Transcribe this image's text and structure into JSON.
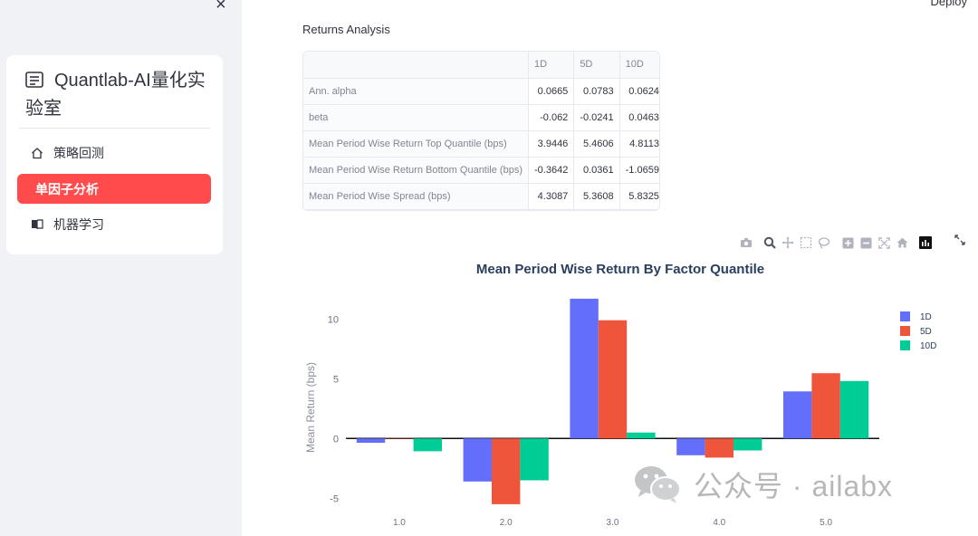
{
  "sidebar": {
    "close_label": "×",
    "title": "Quantlab-AI量化实验室",
    "items": [
      {
        "label": "策略回测",
        "icon": "home-outline-icon",
        "active": false
      },
      {
        "label": "单因子分析",
        "icon": "",
        "active": true
      },
      {
        "label": "机器学习",
        "icon": "book-icon",
        "active": false
      }
    ],
    "accent_color": "#ff4b4b"
  },
  "header": {
    "deploy_label": "Deploy"
  },
  "main": {
    "section_title": "Returns Analysis",
    "table": {
      "columns": [
        "",
        "1D",
        "5D",
        "10D"
      ],
      "rows": [
        {
          "label": "Ann. alpha",
          "values": [
            "0.0665",
            "0.0783",
            "0.0624"
          ]
        },
        {
          "label": "beta",
          "values": [
            "-0.062",
            "-0.0241",
            "0.0463"
          ]
        },
        {
          "label": "Mean Period Wise Return Top Quantile (bps)",
          "values": [
            "3.9446",
            "5.4606",
            "4.8113"
          ]
        },
        {
          "label": "Mean Period Wise Return Bottom Quantile (bps)",
          "values": [
            "-0.3642",
            "0.0361",
            "-1.0659"
          ]
        },
        {
          "label": "Mean Period Wise Spread (bps)",
          "values": [
            "4.3087",
            "5.3608",
            "5.8325"
          ]
        }
      ]
    },
    "modebar": [
      "camera-icon",
      "zoom-icon",
      "pan-icon",
      "box-select-icon",
      "lasso-icon",
      "zoom-in-icon",
      "zoom-out-icon",
      "autoscale-icon",
      "reset-axes-icon",
      "plotly-logo-icon"
    ]
  },
  "chart_data": {
    "type": "bar",
    "title": "Mean Period Wise Return By Factor Quantile",
    "xlabel": "",
    "ylabel": "Mean Return (bps)",
    "categories": [
      "1.0",
      "2.0",
      "3.0",
      "4.0",
      "5.0"
    ],
    "yticks": [
      -5,
      0,
      5,
      10
    ],
    "ylim": [
      -6.8,
      12.3
    ],
    "legend_position": "top-right",
    "series": [
      {
        "name": "1D",
        "color": "#636efa",
        "values": [
          -0.36,
          -3.6,
          11.7,
          -1.4,
          3.94
        ]
      },
      {
        "name": "5D",
        "color": "#ef553b",
        "values": [
          0.04,
          -5.5,
          9.9,
          -1.6,
          5.46
        ]
      },
      {
        "name": "10D",
        "color": "#00cc96",
        "values": [
          -1.07,
          -3.5,
          0.5,
          -1.0,
          4.81
        ]
      }
    ]
  },
  "watermark": {
    "text": "公众号 · ailabx"
  }
}
